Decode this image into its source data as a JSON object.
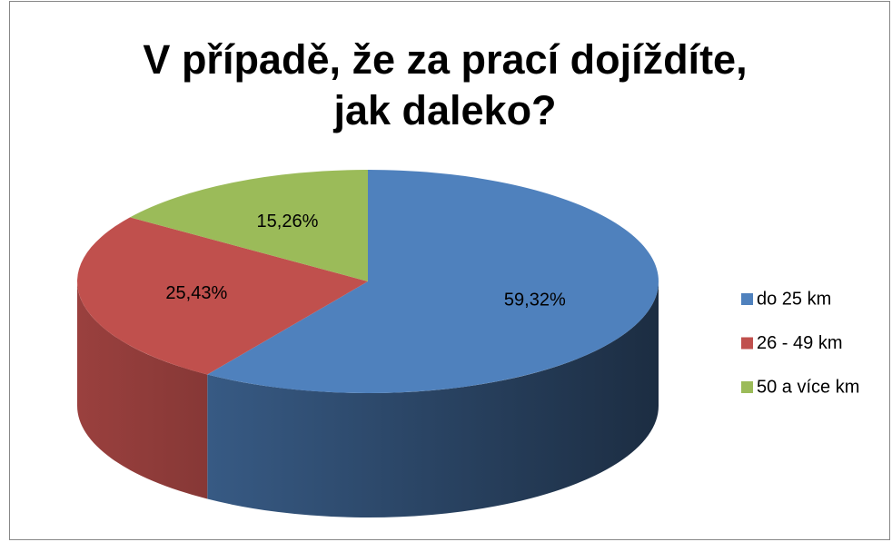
{
  "chart_data": {
    "type": "pie",
    "title": "V případě, že za prací dojíždíte, jak daleko?",
    "categories": [
      "do 25 km",
      "26 - 49 km",
      "50 a více km"
    ],
    "values": [
      59.32,
      25.43,
      15.26
    ],
    "value_labels": [
      "59,32%",
      "25,43%",
      "15,26%"
    ],
    "colors": [
      "#4f81bd",
      "#c0504d",
      "#9bbb59"
    ],
    "legend": "right"
  }
}
